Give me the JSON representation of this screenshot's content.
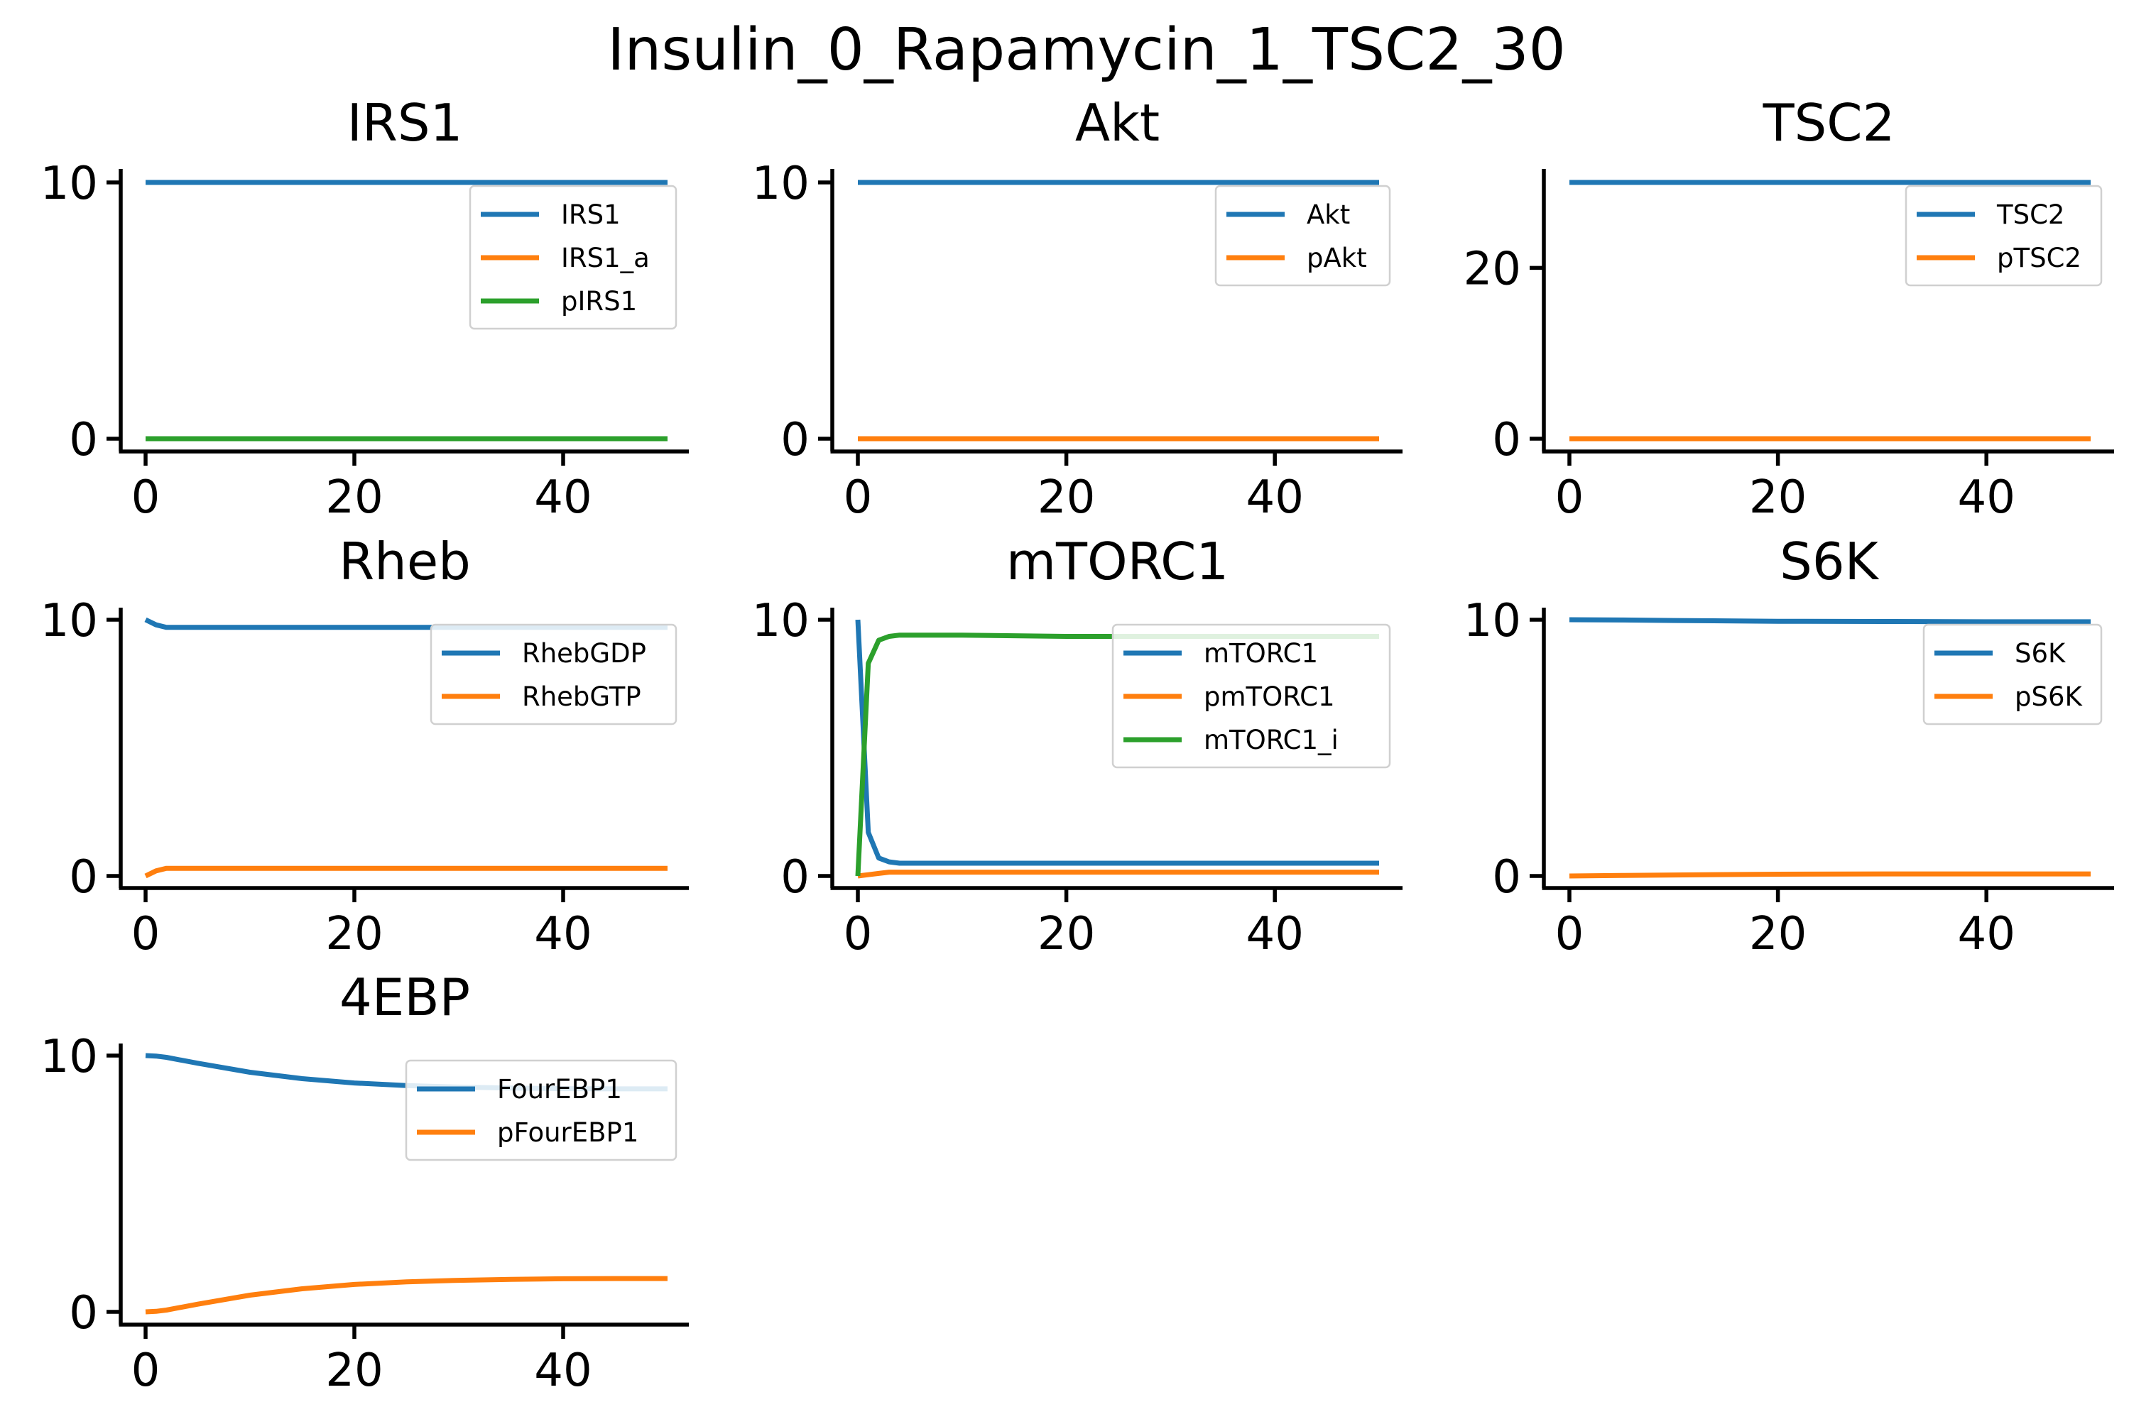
{
  "chart_data": {
    "type": "line",
    "title": "Insulin_0_Rapamycin_1_TSC2_30",
    "colors": {
      "blue": "#1f77b4",
      "orange": "#ff7f0e",
      "green": "#2ca02c"
    },
    "grid": false,
    "legend_position": "top-right",
    "panels": [
      {
        "title": "IRS1",
        "xlim": [
          0,
          50
        ],
        "ylim": [
          0,
          10
        ],
        "xticks": [
          0,
          20,
          40
        ],
        "yticks": [
          0,
          10
        ],
        "series": [
          {
            "name": "IRS1",
            "color": "#1f77b4",
            "x": [
              0,
              50
            ],
            "y": [
              10,
              10
            ]
          },
          {
            "name": "IRS1_a",
            "color": "#ff7f0e",
            "x": [
              0,
              50
            ],
            "y": [
              0,
              0
            ]
          },
          {
            "name": "pIRS1",
            "color": "#2ca02c",
            "x": [
              0,
              50
            ],
            "y": [
              0,
              0
            ]
          }
        ]
      },
      {
        "title": "Akt",
        "xlim": [
          0,
          50
        ],
        "ylim": [
          0,
          10
        ],
        "xticks": [
          0,
          20,
          40
        ],
        "yticks": [
          0,
          10
        ],
        "series": [
          {
            "name": "Akt",
            "color": "#1f77b4",
            "x": [
              0,
              50
            ],
            "y": [
              10,
              10
            ]
          },
          {
            "name": "pAkt",
            "color": "#ff7f0e",
            "x": [
              0,
              50
            ],
            "y": [
              0,
              0
            ]
          }
        ]
      },
      {
        "title": "TSC2",
        "xlim": [
          0,
          50
        ],
        "ylim": [
          0,
          30
        ],
        "xticks": [
          0,
          20,
          40
        ],
        "yticks": [
          0,
          20
        ],
        "series": [
          {
            "name": "TSC2",
            "color": "#1f77b4",
            "x": [
              0,
              50
            ],
            "y": [
              30,
              30
            ]
          },
          {
            "name": "pTSC2",
            "color": "#ff7f0e",
            "x": [
              0,
              50
            ],
            "y": [
              0,
              0
            ]
          }
        ]
      },
      {
        "title": "Rheb",
        "xlim": [
          0,
          50
        ],
        "ylim": [
          0,
          10
        ],
        "xticks": [
          0,
          20,
          40
        ],
        "yticks": [
          0,
          10
        ],
        "series": [
          {
            "name": "RhebGDP",
            "color": "#1f77b4",
            "x": [
              0,
              1,
              2,
              5,
              10,
              20,
              30,
              40,
              50
            ],
            "y": [
              10,
              9.8,
              9.7,
              9.7,
              9.7,
              9.7,
              9.7,
              9.7,
              9.7
            ]
          },
          {
            "name": "RhebGTP",
            "color": "#ff7f0e",
            "x": [
              0,
              1,
              2,
              5,
              10,
              20,
              30,
              40,
              50
            ],
            "y": [
              0,
              0.2,
              0.3,
              0.3,
              0.3,
              0.3,
              0.3,
              0.3,
              0.3
            ]
          }
        ]
      },
      {
        "title": "mTORC1",
        "xlim": [
          0,
          50
        ],
        "ylim": [
          0,
          10
        ],
        "xticks": [
          0,
          20,
          40
        ],
        "yticks": [
          0,
          10
        ],
        "series": [
          {
            "name": "mTORC1",
            "color": "#1f77b4",
            "x": [
              0,
              1,
              2,
              3,
              4,
              5,
              10,
              20,
              30,
              40,
              50
            ],
            "y": [
              10,
              1.7,
              0.7,
              0.55,
              0.5,
              0.5,
              0.5,
              0.5,
              0.5,
              0.5,
              0.5
            ]
          },
          {
            "name": "pmTORC1",
            "color": "#ff7f0e",
            "x": [
              0,
              1,
              2,
              3,
              5,
              10,
              20,
              30,
              40,
              50
            ],
            "y": [
              0,
              0.05,
              0.1,
              0.15,
              0.15,
              0.15,
              0.15,
              0.15,
              0.15,
              0.15
            ]
          },
          {
            "name": "mTORC1_i",
            "color": "#2ca02c",
            "x": [
              0,
              1,
              2,
              3,
              4,
              5,
              10,
              20,
              30,
              40,
              50
            ],
            "y": [
              0,
              8.3,
              9.2,
              9.35,
              9.4,
              9.4,
              9.4,
              9.35,
              9.35,
              9.35,
              9.35
            ]
          }
        ]
      },
      {
        "title": "S6K",
        "xlim": [
          0,
          50
        ],
        "ylim": [
          0,
          10
        ],
        "xticks": [
          0,
          20,
          40
        ],
        "yticks": [
          0,
          10
        ],
        "series": [
          {
            "name": "S6K",
            "color": "#1f77b4",
            "x": [
              0,
              5,
              10,
              20,
              30,
              40,
              50
            ],
            "y": [
              10,
              9.99,
              9.97,
              9.94,
              9.93,
              9.92,
              9.92
            ]
          },
          {
            "name": "pS6K",
            "color": "#ff7f0e",
            "x": [
              0,
              5,
              10,
              20,
              30,
              40,
              50
            ],
            "y": [
              0,
              0.02,
              0.04,
              0.07,
              0.08,
              0.08,
              0.08
            ]
          }
        ]
      },
      {
        "title": "4EBP",
        "xlim": [
          0,
          50
        ],
        "ylim": [
          0,
          10
        ],
        "xticks": [
          0,
          20,
          40
        ],
        "yticks": [
          0,
          10
        ],
        "series": [
          {
            "name": "FourEBP1",
            "color": "#1f77b4",
            "x": [
              0,
              1,
              2,
              5,
              10,
              15,
              20,
              25,
              30,
              35,
              40,
              45,
              50
            ],
            "y": [
              10,
              9.98,
              9.93,
              9.7,
              9.35,
              9.1,
              8.93,
              8.83,
              8.77,
              8.73,
              8.71,
              8.7,
              8.7
            ]
          },
          {
            "name": "pFourEBP1",
            "color": "#ff7f0e",
            "x": [
              0,
              1,
              2,
              5,
              10,
              15,
              20,
              25,
              30,
              35,
              40,
              45,
              50
            ],
            "y": [
              0,
              0.02,
              0.07,
              0.3,
              0.65,
              0.9,
              1.07,
              1.17,
              1.23,
              1.27,
              1.29,
              1.3,
              1.3
            ]
          }
        ]
      }
    ]
  }
}
